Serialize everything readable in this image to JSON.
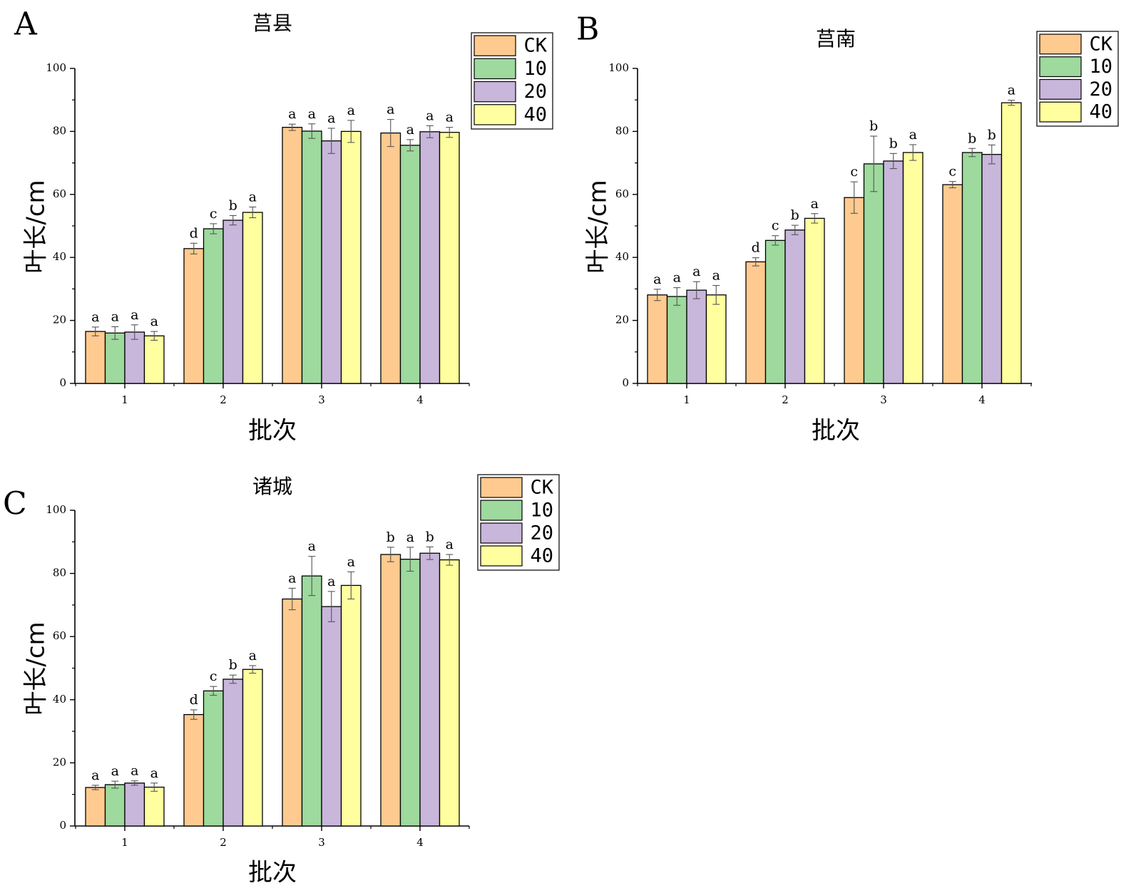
{
  "colors": {
    "CK": "#FFCA8F",
    "10": "#9ED99E",
    "20": "#C8B6DB",
    "40": "#FFFF9F",
    "axis": "#000000",
    "error_bar": "#555555"
  },
  "chart_data": [
    {
      "type": "bar",
      "panel": "A",
      "title": "莒县",
      "xlabel": "批次",
      "ylabel": "叶长/cm",
      "ylim": [
        0,
        100
      ],
      "yticks": [
        0,
        20,
        40,
        60,
        80,
        100
      ],
      "categories": [
        "1",
        "2",
        "3",
        "4"
      ],
      "legend_position": "top-right",
      "grid": false,
      "series": [
        {
          "name": "CK",
          "values": [
            16.5,
            42.8,
            81.3,
            79.5
          ],
          "errors": [
            1.4,
            1.7,
            1.0,
            4.3
          ],
          "labels": [
            "a",
            "d",
            "a",
            "a"
          ]
        },
        {
          "name": "10",
          "values": [
            16.0,
            49.1,
            80.1,
            75.6
          ],
          "errors": [
            2.0,
            1.6,
            2.3,
            1.8
          ],
          "labels": [
            "a",
            "c",
            "a",
            "a"
          ]
        },
        {
          "name": "20",
          "values": [
            16.3,
            51.8,
            77.0,
            79.9
          ],
          "errors": [
            2.3,
            1.5,
            4.0,
            1.9
          ],
          "labels": [
            "a",
            "b",
            "a",
            "a"
          ]
        },
        {
          "name": "40",
          "values": [
            15.1,
            54.3,
            80.0,
            79.7
          ],
          "errors": [
            1.4,
            1.7,
            3.5,
            1.6
          ],
          "labels": [
            "a",
            "a",
            "a",
            "a"
          ]
        }
      ]
    },
    {
      "type": "bar",
      "panel": "B",
      "title": "莒南",
      "xlabel": "批次",
      "ylabel": "叶长/cm",
      "ylim": [
        0,
        100
      ],
      "yticks": [
        0,
        20,
        40,
        60,
        80,
        100
      ],
      "categories": [
        "1",
        "2",
        "3",
        "4"
      ],
      "legend_position": "top-right",
      "grid": false,
      "series": [
        {
          "name": "CK",
          "values": [
            28.1,
            38.6,
            59.0,
            63.1
          ],
          "errors": [
            1.8,
            1.3,
            5.0,
            1.0
          ],
          "labels": [
            "a",
            "d",
            "c",
            "c"
          ]
        },
        {
          "name": "10",
          "values": [
            27.6,
            45.4,
            69.7,
            73.3
          ],
          "errors": [
            2.8,
            1.5,
            8.8,
            1.3
          ],
          "labels": [
            "a",
            "c",
            "b",
            "b"
          ]
        },
        {
          "name": "20",
          "values": [
            29.6,
            48.7,
            70.6,
            72.7
          ],
          "errors": [
            2.7,
            1.5,
            2.4,
            3.0
          ],
          "labels": [
            "a",
            "b",
            "b",
            "b"
          ]
        },
        {
          "name": "40",
          "values": [
            28.1,
            52.4,
            73.3,
            89.1
          ],
          "errors": [
            3.0,
            1.5,
            2.5,
            0.8
          ],
          "labels": [
            "a",
            "a",
            "a",
            "a"
          ]
        }
      ]
    },
    {
      "type": "bar",
      "panel": "C",
      "title": "诸城",
      "xlabel": "批次",
      "ylabel": "叶长/cm",
      "ylim": [
        0,
        100
      ],
      "yticks": [
        0,
        20,
        40,
        60,
        80,
        100
      ],
      "categories": [
        "1",
        "2",
        "3",
        "4"
      ],
      "legend_position": "top-right",
      "grid": false,
      "series": [
        {
          "name": "CK",
          "values": [
            12.2,
            35.3,
            71.9,
            86.0
          ],
          "errors": [
            0.7,
            1.5,
            3.4,
            2.3
          ],
          "labels": [
            "a",
            "d",
            "a",
            "b"
          ]
        },
        {
          "name": "10",
          "values": [
            13.1,
            42.8,
            79.2,
            84.5
          ],
          "errors": [
            1.1,
            1.4,
            6.2,
            3.8
          ],
          "labels": [
            "a",
            "c",
            "a",
            "a"
          ]
        },
        {
          "name": "20",
          "values": [
            13.6,
            46.5,
            69.5,
            86.4
          ],
          "errors": [
            0.7,
            1.3,
            4.8,
            2.0
          ],
          "labels": [
            "a",
            "b",
            "a",
            "b"
          ]
        },
        {
          "name": "40",
          "values": [
            12.3,
            49.6,
            76.2,
            84.3
          ],
          "errors": [
            1.3,
            1.2,
            4.3,
            1.7
          ],
          "labels": [
            "a",
            "a",
            "a",
            "a"
          ]
        }
      ]
    }
  ]
}
